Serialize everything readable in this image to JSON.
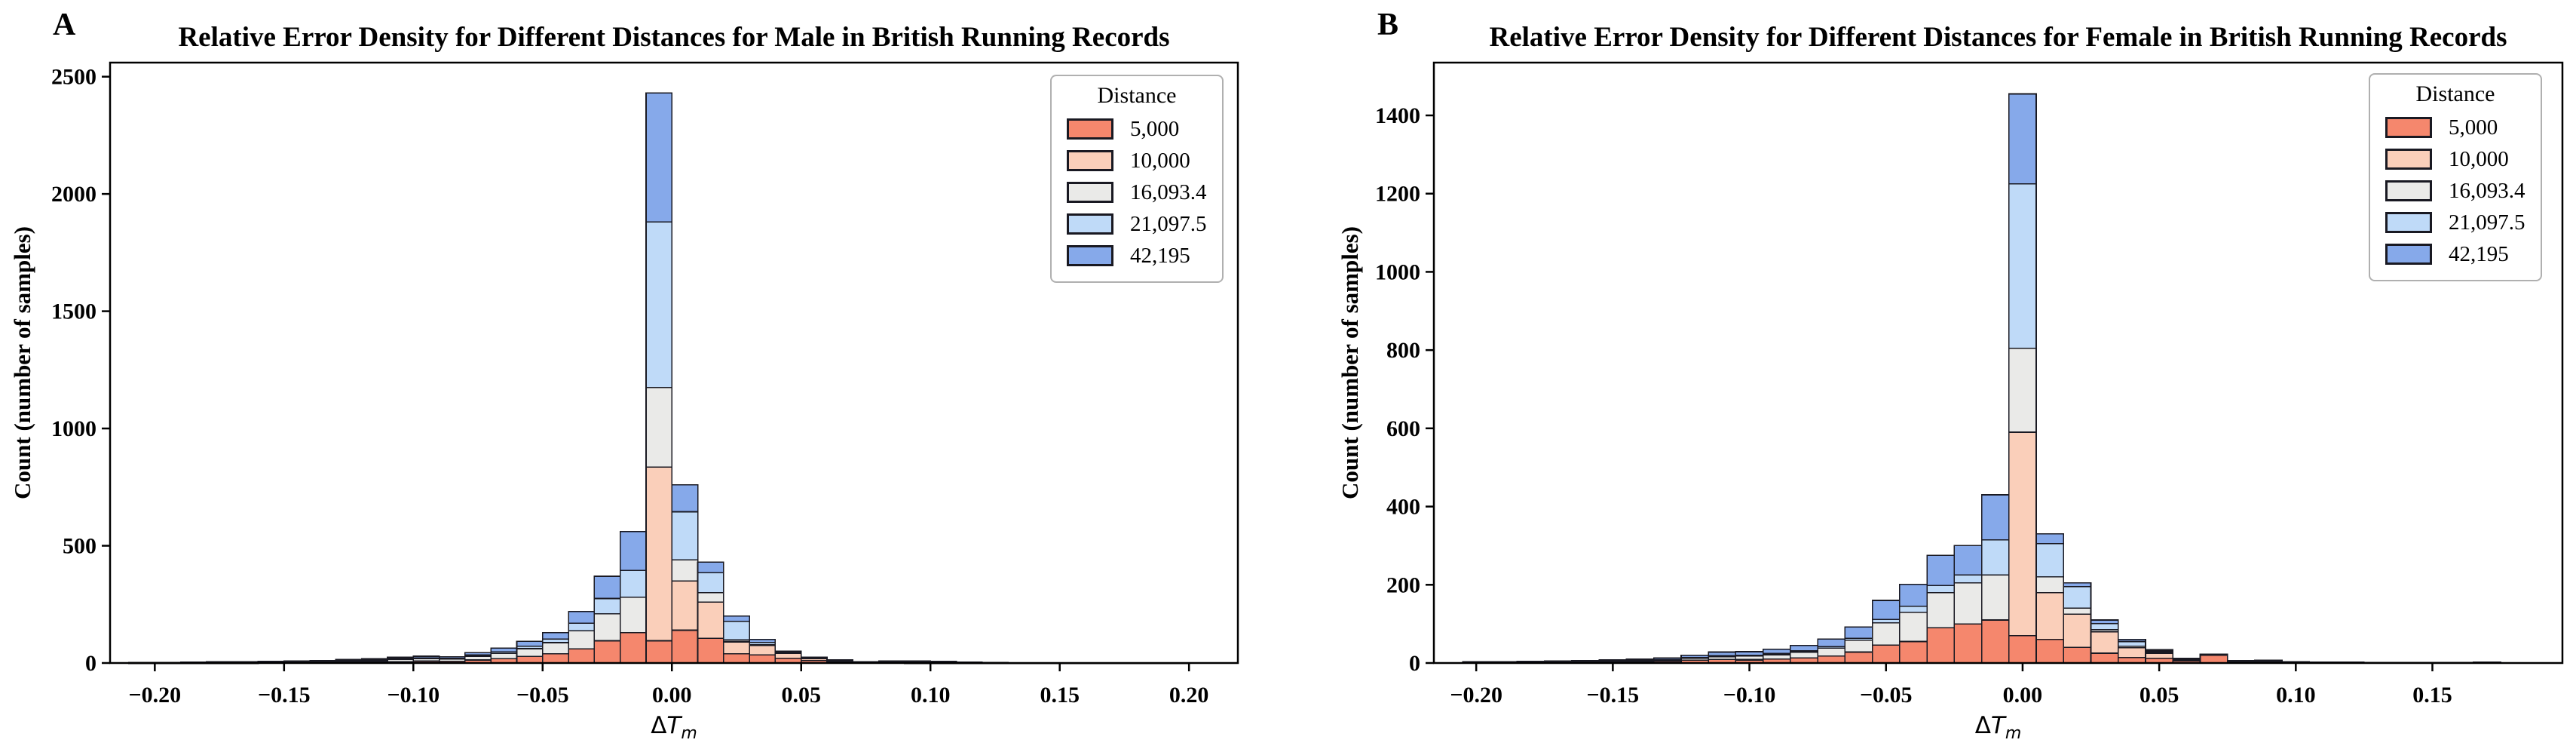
{
  "styles": {
    "bar_edge_color": "#191922",
    "legend_border_color": "#b0b0b0",
    "axis_color": "#000000",
    "background_color": "#ffffff"
  },
  "chart_data": [
    {
      "type": "bar",
      "stacked": true,
      "panel_label": "A",
      "title": "Relative Error Density for Different Distances for Male in British Running Records",
      "ylabel": "Count (number of samples)",
      "xlabel": "ΔT_m",
      "xlabel_parts": {
        "delta": "Δ",
        "var": "T",
        "sub": "m"
      },
      "legend_title": "Distance",
      "legend_position": "upper right",
      "grid": false,
      "ylim": [
        0,
        2560
      ],
      "xlim": [
        -0.2173,
        0.2189
      ],
      "yticks": [
        0,
        500,
        1000,
        1500,
        2000,
        2500
      ],
      "ytick_labels": [
        "0",
        "500",
        "1000",
        "1500",
        "2000",
        "2500"
      ],
      "xticks": [
        -0.2,
        -0.15,
        -0.1,
        -0.05,
        0.0,
        0.05,
        0.1,
        0.15,
        0.2
      ],
      "xtick_labels": [
        "−0.20",
        "−0.15",
        "−0.10",
        "−0.05",
        "0.00",
        "0.05",
        "0.10",
        "0.15",
        "0.20"
      ],
      "bin_width": 0.01,
      "x": [
        -0.205,
        -0.195,
        -0.185,
        -0.175,
        -0.165,
        -0.155,
        -0.145,
        -0.135,
        -0.125,
        -0.115,
        -0.105,
        -0.095,
        -0.085,
        -0.075,
        -0.065,
        -0.055,
        -0.045,
        -0.035,
        -0.025,
        -0.015,
        -0.005,
        0.005,
        0.015,
        0.025,
        0.035,
        0.045,
        0.055,
        0.065,
        0.075,
        0.085,
        0.095,
        0.105,
        0.115,
        0.125,
        0.135,
        0.145,
        0.155,
        0.165,
        0.175,
        0.185,
        0.195
      ],
      "series": [
        {
          "name": "5,000",
          "color": "#f5876d",
          "values": [
            1,
            1,
            1,
            1,
            1,
            2,
            2,
            3,
            4,
            5,
            6,
            8,
            7,
            13,
            18,
            28,
            40,
            60,
            95,
            130,
            95,
            140,
            105,
            40,
            35,
            20,
            10,
            5,
            2,
            2,
            1,
            1,
            1,
            1,
            0,
            0,
            0,
            0,
            0,
            0,
            0
          ]
        },
        {
          "name": "10,000",
          "color": "#facfba",
          "values": [
            0,
            0,
            0,
            0,
            0,
            0,
            0,
            0,
            0,
            0,
            0,
            0,
            0,
            0,
            0,
            0,
            0,
            0,
            0,
            0,
            740,
            210,
            155,
            50,
            40,
            22,
            10,
            5,
            2,
            1,
            1,
            0,
            0,
            0,
            0,
            0,
            0,
            0,
            0,
            0,
            0
          ]
        },
        {
          "name": "16,093.4",
          "color": "#eaeae8",
          "values": [
            1,
            1,
            1,
            2,
            2,
            2,
            3,
            4,
            5,
            7,
            9,
            11,
            10,
            16,
            23,
            33,
            47,
            78,
            115,
            150,
            340,
            90,
            40,
            8,
            3,
            2,
            1,
            1,
            1,
            5,
            5,
            5,
            2,
            2,
            1,
            1,
            1,
            1,
            1,
            1,
            1
          ]
        },
        {
          "name": "21,097.5",
          "color": "#bfdaf8",
          "values": [
            0,
            0,
            0,
            0,
            1,
            1,
            1,
            1,
            2,
            2,
            3,
            3,
            3,
            5,
            7,
            10,
            15,
            32,
            65,
            115,
            705,
            205,
            85,
            80,
            10,
            3,
            2,
            1,
            0,
            0,
            0,
            0,
            0,
            0,
            0,
            0,
            0,
            0,
            0,
            0,
            0
          ]
        },
        {
          "name": "42,195",
          "color": "#86a9ea",
          "values": [
            1,
            1,
            2,
            2,
            2,
            2,
            2,
            3,
            4,
            5,
            6,
            7,
            6,
            10,
            15,
            21,
            28,
            50,
            95,
            165,
            550,
            115,
            45,
            22,
            12,
            3,
            2,
            1,
            1,
            1,
            1,
            1,
            1,
            0,
            0,
            0,
            0,
            0,
            0,
            0,
            0
          ]
        }
      ]
    },
    {
      "type": "bar",
      "stacked": true,
      "panel_label": "B",
      "title": "Relative Error Density for Different Distances for Female in British Running Records",
      "ylabel": "Count (number of samples)",
      "xlabel": "ΔT_m",
      "xlabel_parts": {
        "delta": "Δ",
        "var": "T",
        "sub": "m"
      },
      "legend_title": "Distance",
      "legend_position": "upper right",
      "grid": false,
      "ylim": [
        0,
        1535
      ],
      "xlim": [
        -0.2155,
        0.1976
      ],
      "yticks": [
        0,
        200,
        400,
        600,
        800,
        1000,
        1200,
        1400
      ],
      "ytick_labels": [
        "0",
        "200",
        "400",
        "600",
        "800",
        "1000",
        "1200",
        "1400"
      ],
      "xticks": [
        -0.2,
        -0.15,
        -0.1,
        -0.05,
        0.0,
        0.05,
        0.1,
        0.15
      ],
      "xtick_labels": [
        "−0.20",
        "−0.15",
        "−0.10",
        "−0.05",
        "0.00",
        "0.05",
        "0.10",
        "0.15"
      ],
      "bin_width": 0.01,
      "x": [
        -0.2,
        -0.19,
        -0.18,
        -0.17,
        -0.16,
        -0.15,
        -0.14,
        -0.13,
        -0.12,
        -0.11,
        -0.1,
        -0.09,
        -0.08,
        -0.07,
        -0.06,
        -0.05,
        -0.04,
        -0.03,
        -0.02,
        -0.01,
        0.0,
        0.01,
        0.02,
        0.03,
        0.04,
        0.05,
        0.06,
        0.07,
        0.08,
        0.09,
        0.1,
        0.11,
        0.12,
        0.13,
        0.14,
        0.15,
        0.16,
        0.17
      ],
      "series": [
        {
          "name": "5,000",
          "color": "#f5876d",
          "values": [
            1,
            1,
            1,
            2,
            2,
            2,
            3,
            4,
            7,
            9,
            8,
            10,
            13,
            18,
            28,
            46,
            55,
            90,
            100,
            110,
            70,
            60,
            40,
            25,
            14,
            12,
            5,
            20,
            3,
            2,
            1,
            1,
            1,
            0,
            0,
            0,
            0,
            1
          ]
        },
        {
          "name": "10,000",
          "color": "#facfba",
          "values": [
            0,
            0,
            0,
            0,
            0,
            0,
            0,
            0,
            0,
            0,
            1,
            0,
            0,
            0,
            0,
            0,
            0,
            0,
            0,
            0,
            520,
            120,
            85,
            55,
            25,
            13,
            3,
            2,
            1,
            1,
            0,
            0,
            0,
            0,
            0,
            0,
            0,
            0
          ]
        },
        {
          "name": "16,093.4",
          "color": "#eaeae8",
          "values": [
            1,
            1,
            1,
            1,
            2,
            2,
            3,
            4,
            5,
            7,
            9,
            11,
            15,
            20,
            30,
            57,
            75,
            90,
            105,
            115,
            215,
            40,
            15,
            5,
            4,
            3,
            2,
            1,
            1,
            2,
            1,
            1,
            1,
            1,
            1,
            1,
            1,
            1
          ]
        },
        {
          "name": "21,097.5",
          "color": "#bfdaf8",
          "values": [
            0,
            0,
            1,
            1,
            1,
            1,
            1,
            1,
            2,
            3,
            2,
            3,
            3,
            4,
            5,
            8,
            15,
            18,
            20,
            90,
            420,
            85,
            55,
            16,
            12,
            3,
            1,
            0,
            0,
            1,
            0,
            0,
            0,
            0,
            0,
            0,
            0,
            0
          ]
        },
        {
          "name": "42,195",
          "color": "#86a9ea",
          "values": [
            1,
            1,
            1,
            1,
            1,
            3,
            3,
            4,
            6,
            9,
            9,
            11,
            14,
            19,
            29,
            49,
            56,
            77,
            75,
            115,
            230,
            25,
            10,
            9,
            5,
            3,
            1,
            0,
            1,
            1,
            1,
            0,
            0,
            0,
            0,
            0,
            0,
            0
          ]
        }
      ]
    }
  ]
}
